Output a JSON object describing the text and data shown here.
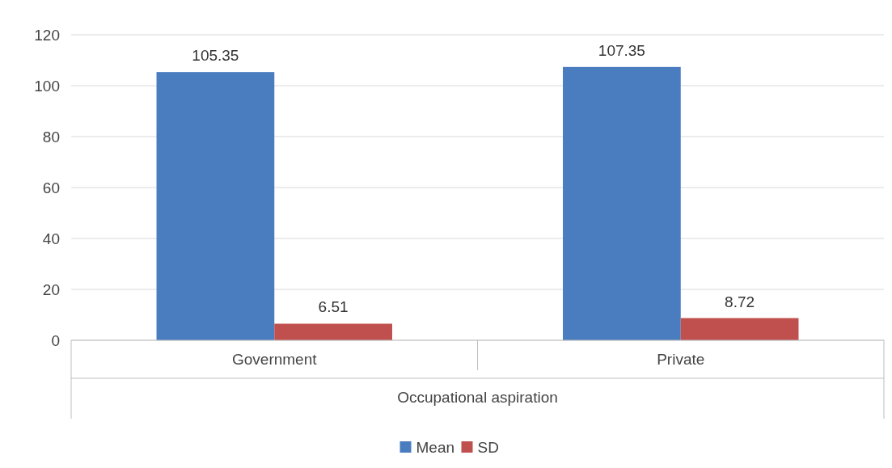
{
  "chart_data": {
    "type": "bar",
    "xlabel": "Occupational aspiration",
    "categories": [
      "Government",
      "Private"
    ],
    "series": [
      {
        "name": "Mean",
        "color": "#4a7cc0",
        "values": [
          105.35,
          107.35
        ]
      },
      {
        "name": "SD",
        "color": "#c0504d",
        "values": [
          6.51,
          8.72
        ]
      }
    ],
    "ylim": [
      0,
      120
    ],
    "yticks": [
      0,
      20,
      40,
      60,
      80,
      100,
      120
    ],
    "grid": "y",
    "legend": "bottom",
    "data_labels": true
  }
}
